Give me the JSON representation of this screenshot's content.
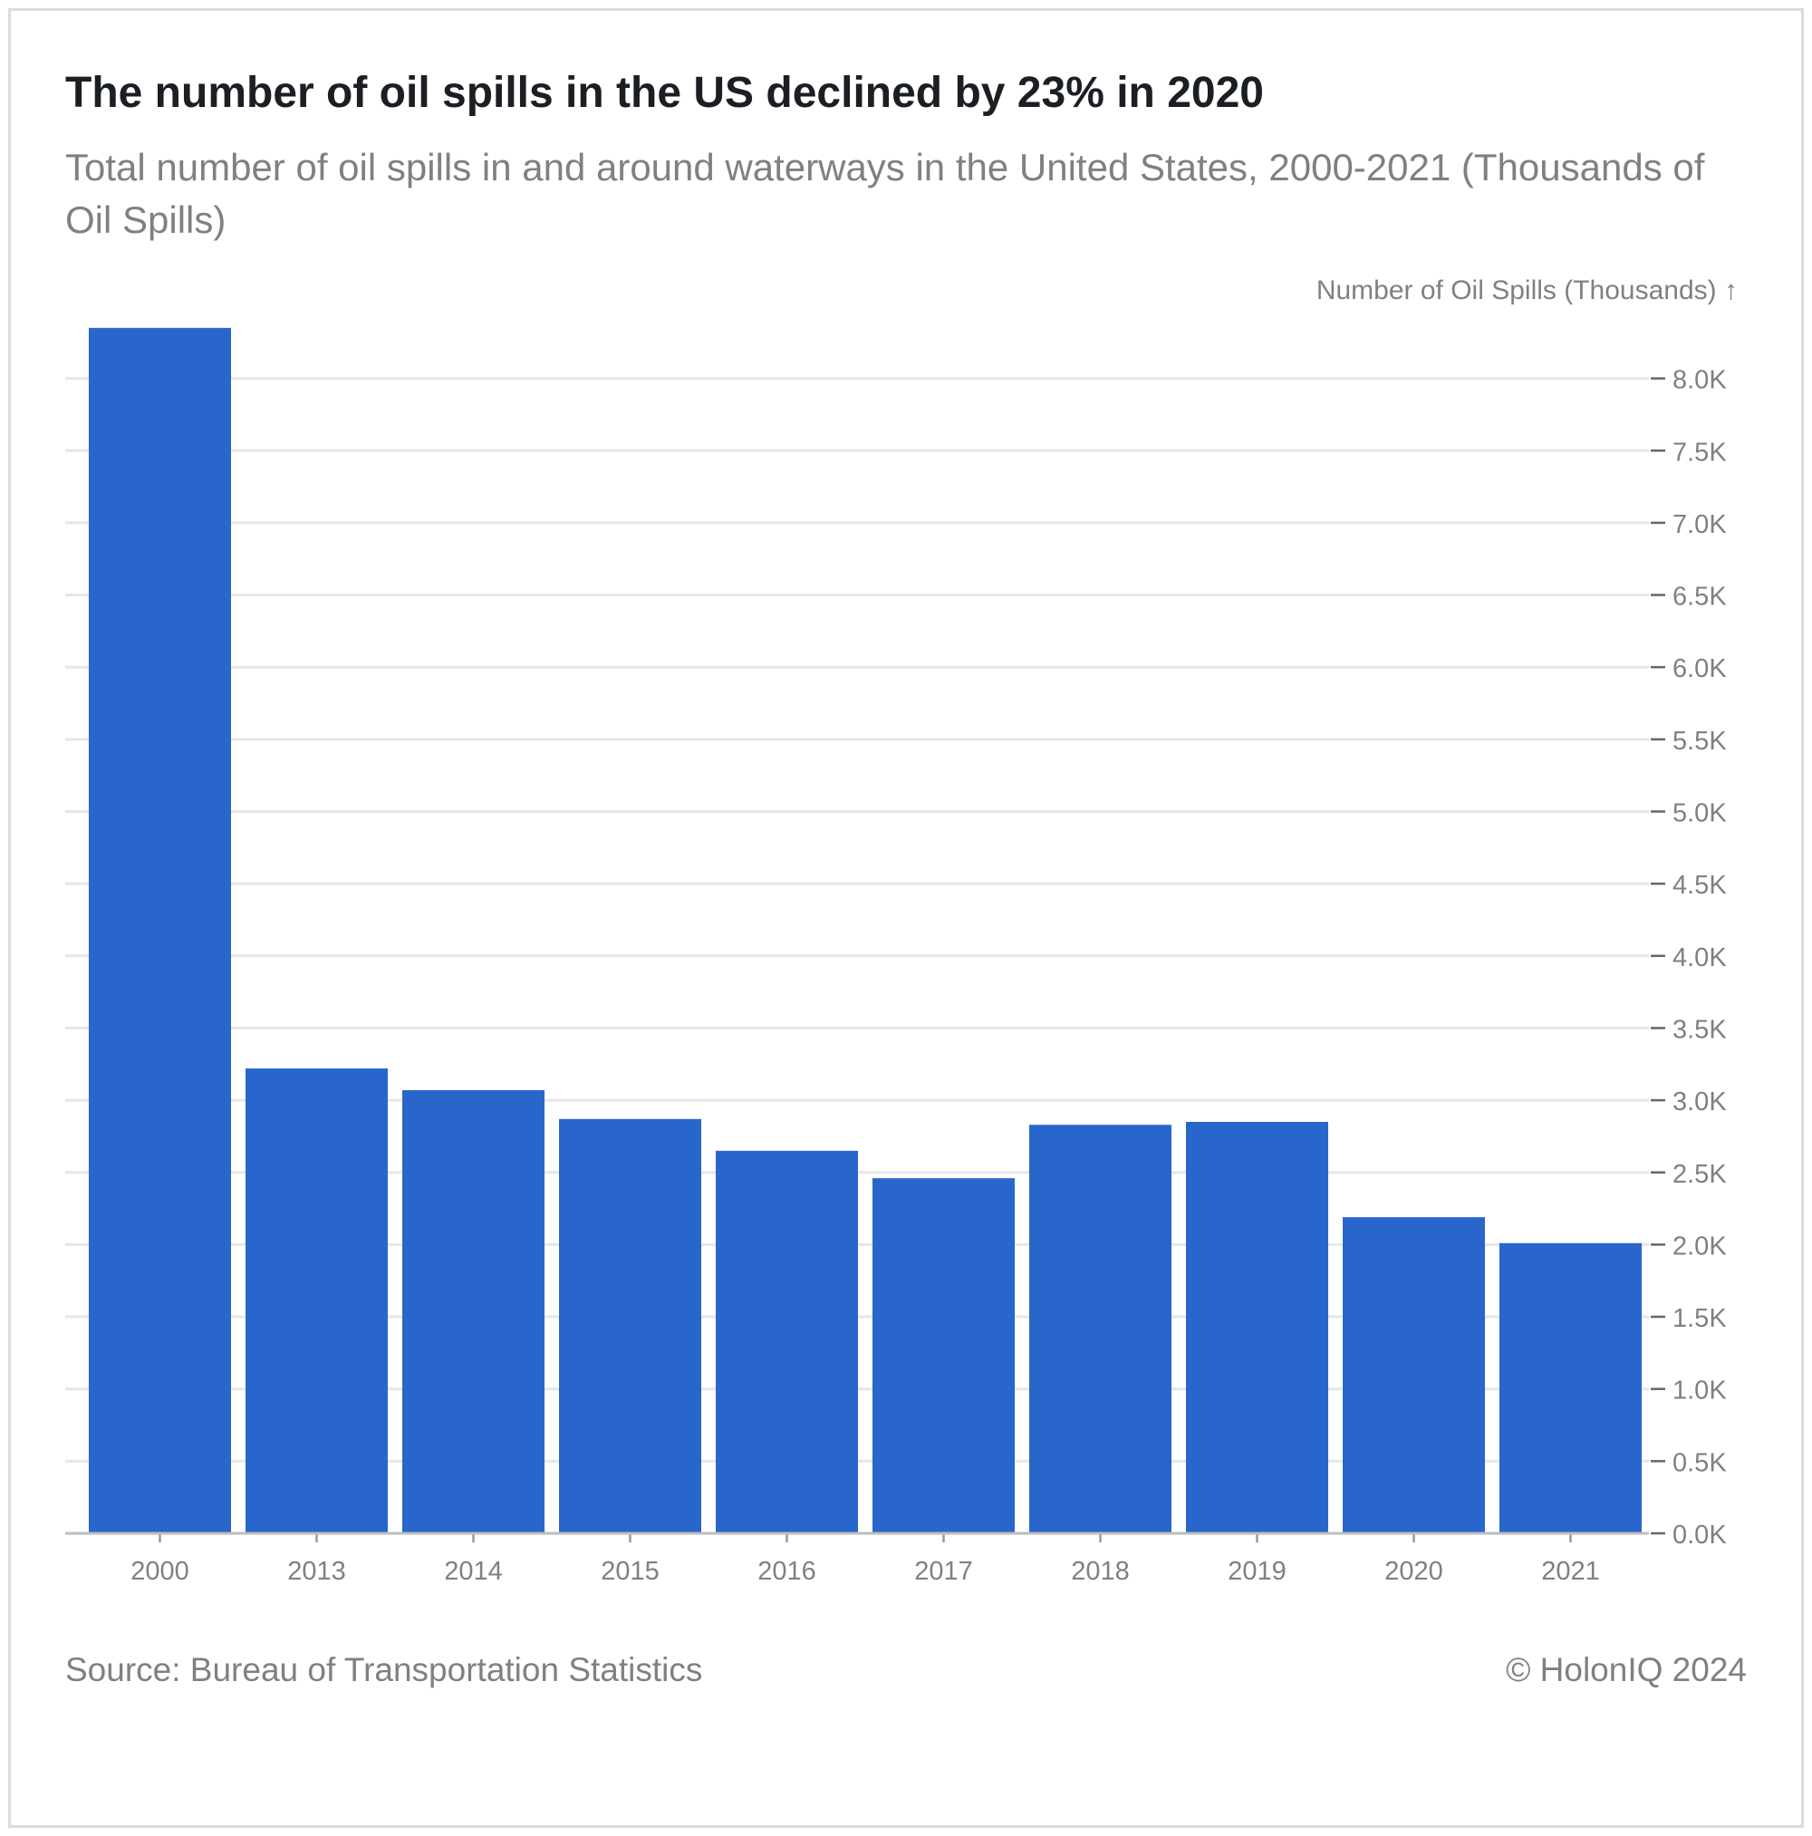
{
  "chart_data": {
    "type": "bar",
    "title": "The number of oil spills in the US declined by 23% in 2020",
    "subtitle": "Total number of oil spills in and around waterways in the United States, 2000-2021 (Thousands of Oil Spills)",
    "ylabel": "Number of Oil Spills (Thousands) ↑",
    "categories": [
      "2000",
      "2013",
      "2014",
      "2015",
      "2016",
      "2017",
      "2018",
      "2019",
      "2020",
      "2021"
    ],
    "values": [
      8.35,
      3.22,
      3.07,
      2.87,
      2.65,
      2.46,
      2.83,
      2.85,
      2.19,
      2.01
    ],
    "ylim": [
      0,
      8.0
    ],
    "yticks": [
      0,
      0.5,
      1.0,
      1.5,
      2.0,
      2.5,
      3.0,
      3.5,
      4.0,
      4.5,
      5.0,
      5.5,
      6.0,
      6.5,
      7.0,
      7.5,
      8.0
    ],
    "ytick_labels": [
      "0.0K",
      "0.5K",
      "1.0K",
      "1.5K",
      "2.0K",
      "2.5K",
      "3.0K",
      "3.5K",
      "4.0K",
      "4.5K",
      "5.0K",
      "5.5K",
      "6.0K",
      "6.5K",
      "7.0K",
      "7.5K",
      "8.0K"
    ],
    "y_axis_side": "right",
    "grid": true,
    "bar_color": "#2966cc",
    "grid_color": "#e6e6e6",
    "text_color": "#808080"
  },
  "footer": {
    "source": "Source: Bureau of Transportation Statistics",
    "copyright": "© HolonIQ 2024"
  }
}
